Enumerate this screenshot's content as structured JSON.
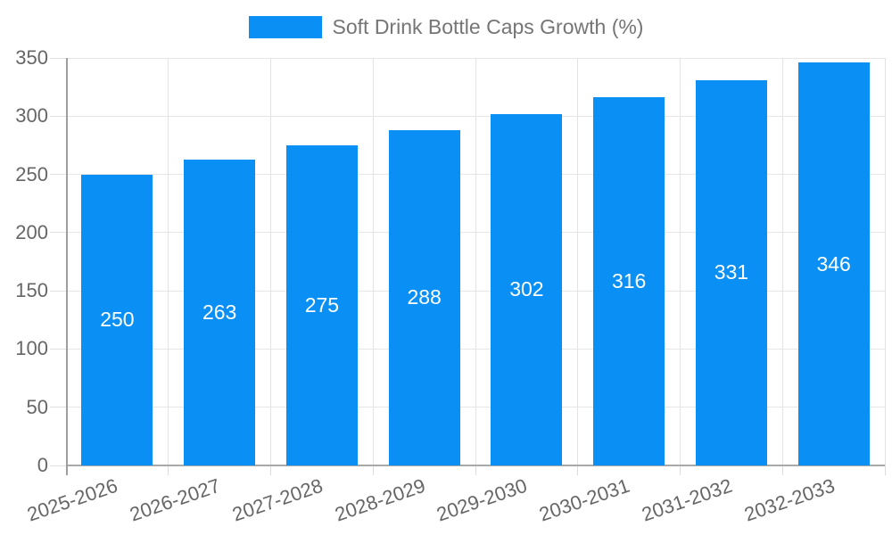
{
  "chart_data": {
    "type": "bar",
    "title": "Soft Drink Bottle Caps Growth (%)",
    "categories": [
      "2025-2026",
      "2026-2027",
      "2027-2028",
      "2028-2029",
      "2029-2030",
      "2030-2031",
      "2031-2032",
      "2032-2033"
    ],
    "values": [
      250,
      263,
      275,
      288,
      302,
      316,
      331,
      346
    ],
    "bar_value_labels": [
      "250",
      "263",
      "275",
      "288",
      "302",
      "316",
      "331",
      "346"
    ],
    "ylim": [
      0,
      350
    ],
    "yticks": [
      0,
      50,
      100,
      150,
      200,
      250,
      300,
      350
    ],
    "ytick_labels": [
      "0",
      "50",
      "100",
      "150",
      "200",
      "250",
      "300",
      "350"
    ],
    "xlabel": "",
    "ylabel": "",
    "grid": true,
    "legend_position": "top",
    "bar_color": "#0a90f5",
    "bar_label_color": "#ffffff",
    "gridline_color": "#e6e6e6",
    "axis_color": "#a9a9a9",
    "tick_text_color": "#666666",
    "legend_text_color": "#757575",
    "background_color": "#ffffff"
  }
}
